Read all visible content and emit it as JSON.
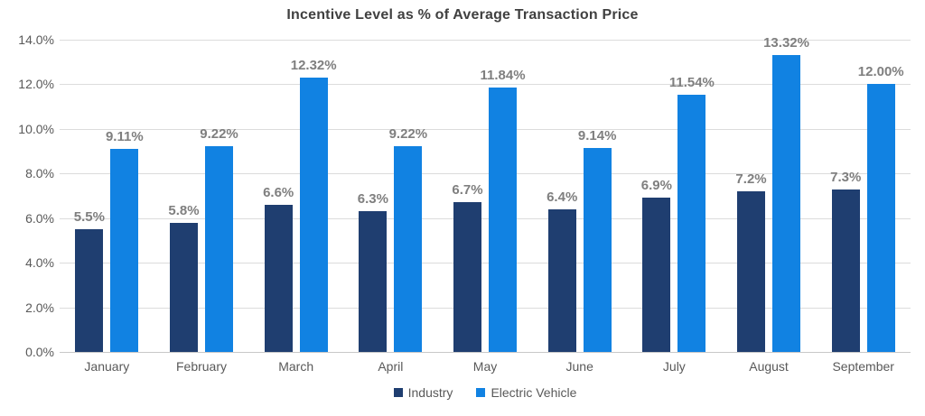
{
  "chart_data": {
    "type": "bar",
    "title": "Incentive Level as % of Average Transaction Price",
    "categories": [
      "January",
      "February",
      "March",
      "April",
      "May",
      "June",
      "July",
      "August",
      "September"
    ],
    "series": [
      {
        "name": "Industry",
        "color": "#1f3e70",
        "values": [
          5.5,
          5.8,
          6.6,
          6.3,
          6.7,
          6.4,
          6.9,
          7.2,
          7.3
        ],
        "labels": [
          "5.5%",
          "5.8%",
          "6.6%",
          "6.3%",
          "6.7%",
          "6.4%",
          "6.9%",
          "7.2%",
          "7.3%"
        ]
      },
      {
        "name": "Electric Vehicle",
        "color": "#1182e2",
        "values": [
          9.11,
          9.22,
          12.32,
          9.22,
          11.84,
          9.14,
          11.54,
          13.32,
          12.0
        ],
        "labels": [
          "9.11%",
          "9.22%",
          "12.32%",
          "9.22%",
          "11.84%",
          "9.14%",
          "11.54%",
          "13.32%",
          "12.00%"
        ]
      }
    ],
    "xlabel": "",
    "ylabel": "",
    "ylim": [
      0,
      14
    ],
    "y_tick_labels": [
      "0.0%",
      "2.0%",
      "4.0%",
      "6.0%",
      "8.0%",
      "10.0%",
      "12.0%",
      "14.0%"
    ],
    "y_tick_values": [
      0,
      2,
      4,
      6,
      8,
      10,
      12,
      14
    ],
    "grid": "horizontal",
    "legend_position": "bottom-center",
    "text_colors": {
      "title": "#404040",
      "data_label": "#7f7f7f",
      "axis_label": "#595959"
    }
  }
}
